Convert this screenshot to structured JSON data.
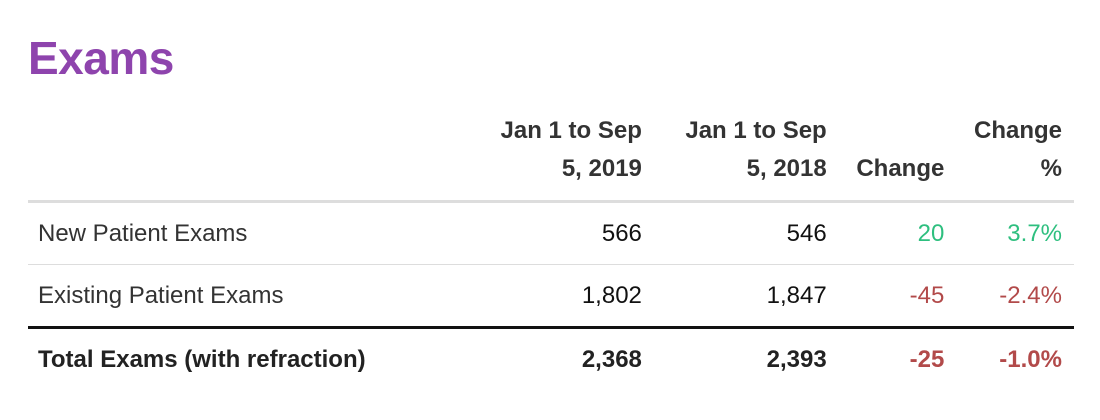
{
  "title": "Exams",
  "colors": {
    "title": "#8e44ad",
    "positive": "#2ebf7f",
    "negative": "#b24a4a"
  },
  "table": {
    "headers": {
      "current_line1": "Jan 1 to Sep",
      "current_line2": "5, 2019",
      "previous_line1": "Jan 1 to Sep",
      "previous_line2": "5, 2018",
      "change": "Change",
      "change_pct_line1": "Change",
      "change_pct_line2": "%"
    },
    "rows": [
      {
        "label": "New Patient Exams",
        "current": "566",
        "previous": "546",
        "change": "20",
        "change_pct": "3.7%",
        "direction": "positive"
      },
      {
        "label": "Existing Patient Exams",
        "current": "1,802",
        "previous": "1,847",
        "change": "-45",
        "change_pct": "-2.4%",
        "direction": "negative"
      }
    ],
    "total": {
      "label": "Total Exams (with refraction)",
      "current": "2,368",
      "previous": "2,393",
      "change": "-25",
      "change_pct": "-1.0%",
      "direction": "negative"
    }
  }
}
